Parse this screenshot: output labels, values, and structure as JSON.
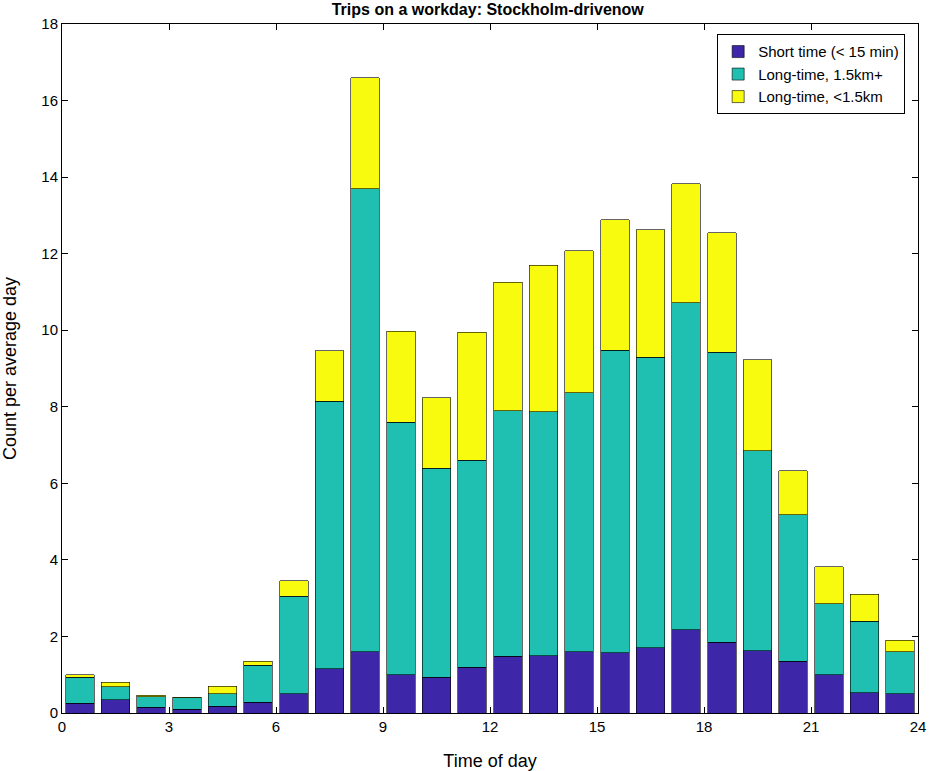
{
  "chart_data": {
    "type": "bar",
    "title": "Trips on a workday: Stockholm-drivenow",
    "x_label": "Time of day",
    "y_label": "Count per average day",
    "x": [
      0.5,
      1.5,
      2.5,
      3.5,
      4.5,
      5.5,
      6.5,
      7.5,
      8.5,
      9.5,
      10.5,
      11.5,
      12.5,
      13.5,
      14.5,
      15.5,
      16.5,
      17.5,
      18.5,
      19.5,
      20.5,
      21.5,
      22.5,
      23.5
    ],
    "stacked": true,
    "series": [
      {
        "name": "Short time (< 15 min)",
        "color": "#3e26a8",
        "values": [
          0.25,
          0.35,
          0.15,
          0.1,
          0.18,
          0.28,
          0.5,
          1.15,
          1.6,
          1.0,
          0.93,
          1.2,
          1.48,
          1.5,
          1.6,
          1.57,
          1.7,
          2.17,
          1.85,
          1.63,
          1.35,
          1.0,
          0.53,
          0.5
        ]
      },
      {
        "name": "Long-time, 1.5km+",
        "color": "#1fbfb1",
        "values": [
          0.68,
          0.33,
          0.27,
          0.3,
          0.32,
          0.97,
          2.55,
          7.0,
          12.1,
          6.6,
          5.47,
          5.4,
          6.42,
          6.37,
          6.77,
          7.91,
          7.6,
          8.55,
          7.57,
          5.22,
          3.83,
          1.85,
          1.87,
          1.1
        ]
      },
      {
        "name": "Long-time, <1.5km",
        "color": "#f9fb0e",
        "values": [
          0.07,
          0.12,
          0.05,
          0.01,
          0.2,
          0.1,
          0.4,
          1.32,
          2.9,
          2.37,
          1.83,
          3.35,
          3.35,
          3.83,
          3.7,
          3.4,
          3.32,
          3.11,
          3.13,
          2.38,
          1.15,
          0.97,
          0.7,
          0.3
        ]
      }
    ],
    "xlim": [
      0,
      24
    ],
    "xticks": [
      0,
      3,
      6,
      9,
      12,
      15,
      18,
      21,
      24
    ],
    "ylim": [
      0,
      18
    ],
    "yticks": [
      0,
      2,
      4,
      6,
      8,
      10,
      12,
      14,
      16,
      18
    ],
    "grid": false,
    "legend": "top right"
  }
}
